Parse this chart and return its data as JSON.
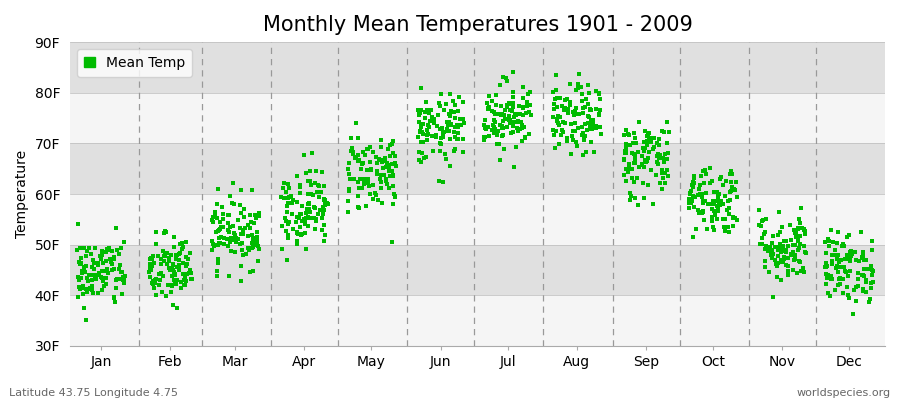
{
  "title": "Monthly Mean Temperatures 1901 - 2009",
  "ylabel": "Temperature",
  "xlabel_labels": [
    "Jan",
    "Feb",
    "Mar",
    "Apr",
    "May",
    "Jun",
    "Jul",
    "Aug",
    "Sep",
    "Oct",
    "Nov",
    "Dec"
  ],
  "ytick_labels": [
    "30F",
    "40F",
    "50F",
    "60F",
    "70F",
    "80F",
    "90F"
  ],
  "ytick_values": [
    30,
    40,
    50,
    60,
    70,
    80,
    90
  ],
  "ylim": [
    30,
    90
  ],
  "legend_label": "Mean Temp",
  "marker_color": "#00bb00",
  "bg_color": "#ebebeb",
  "band_color_light": "#f5f5f5",
  "band_color_dark": "#e0e0e0",
  "grid_color": "#bbbbbb",
  "dashed_color": "#999999",
  "footer_left": "Latitude 43.75 Longitude 4.75",
  "footer_right": "worldspecies.org",
  "title_fontsize": 15,
  "axis_fontsize": 10,
  "footer_fontsize": 8,
  "monthly_means": [
    44.5,
    45.0,
    52.5,
    57.5,
    64.5,
    72.5,
    75.5,
    74.5,
    67.0,
    59.0,
    49.5,
    45.5
  ],
  "monthly_spreads": [
    3.5,
    3.5,
    3.5,
    4.0,
    4.0,
    3.5,
    3.5,
    3.5,
    4.0,
    3.5,
    3.5,
    3.5
  ],
  "n_years": 109,
  "seed": 42,
  "mid_days": [
    15,
    46,
    75,
    106,
    136,
    167,
    197,
    228,
    259,
    289,
    320,
    350
  ],
  "month_starts": [
    1,
    32,
    60,
    91,
    121,
    152,
    182,
    213,
    244,
    274,
    305,
    335,
    366
  ],
  "xlim": [
    1,
    366
  ]
}
